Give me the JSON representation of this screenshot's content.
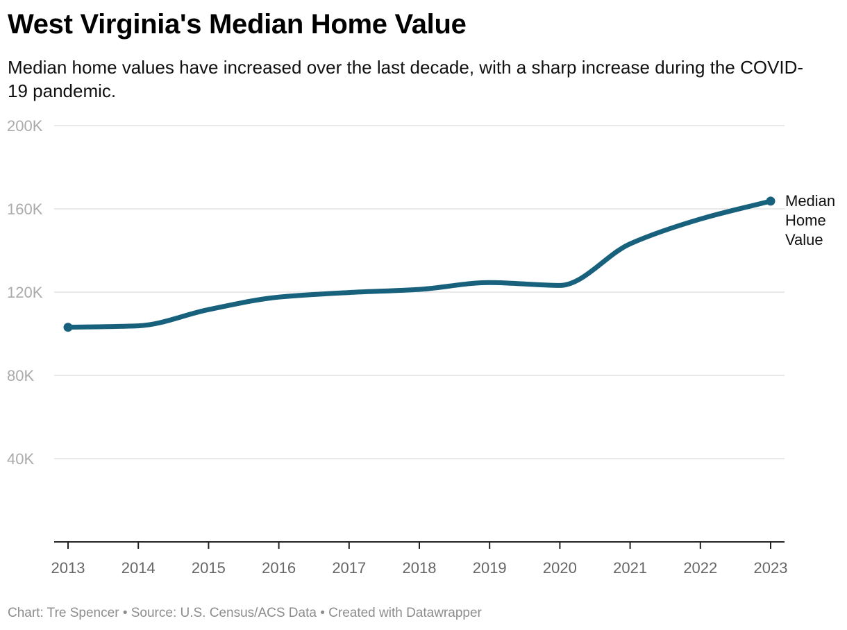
{
  "header": {
    "title": "West Virginia's Median Home Value",
    "subtitle": "Median home values have increased over the last decade, with a sharp increase during the COVID-19 pandemic."
  },
  "footer": {
    "credit": "Chart: Tre Spencer",
    "separator": "•",
    "source": "Source: U.S. Census/ACS Data",
    "tool": "Created with Datawrapper"
  },
  "colors": {
    "line": "#17617d",
    "grid": "#e2e2e2",
    "axis": "#222222"
  },
  "chart_data": {
    "type": "line",
    "title": "West Virginia's Median Home Value",
    "xlabel": "",
    "ylabel": "",
    "x": [
      2013,
      2014,
      2015,
      2016,
      2017,
      2018,
      2019,
      2020,
      2021,
      2022,
      2023
    ],
    "series": [
      {
        "name": "Median Home Value",
        "label_lines": [
          "Median",
          "Home",
          "Value"
        ],
        "values": [
          103100,
          103800,
          111600,
          117600,
          119800,
          121300,
          124600,
          123200,
          143200,
          155100,
          163700
        ]
      }
    ],
    "ylim": [
      0,
      200000
    ],
    "xlim": [
      2013,
      2023
    ],
    "yticks": [
      {
        "value": 40000,
        "label": "40K"
      },
      {
        "value": 80000,
        "label": "80K"
      },
      {
        "value": 120000,
        "label": "120K"
      },
      {
        "value": 160000,
        "label": "160K"
      },
      {
        "value": 200000,
        "label": "200K"
      }
    ],
    "xticks": [
      "2013",
      "2014",
      "2015",
      "2016",
      "2017",
      "2018",
      "2019",
      "2020",
      "2021",
      "2022",
      "2023"
    ],
    "grid": true,
    "legend": "inline-right"
  }
}
